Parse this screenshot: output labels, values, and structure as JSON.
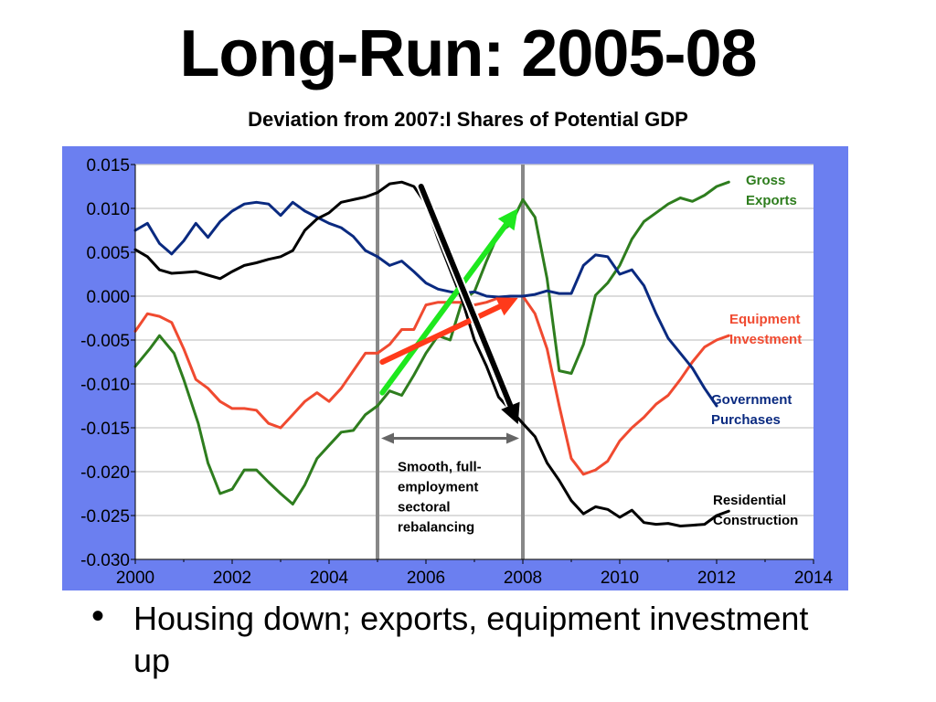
{
  "page": {
    "title": "Long-Run: 2005-08",
    "subtitle": "Deviation from 2007:I Shares of Potential GDP",
    "bullet_text": "Housing down; exports, equipment investment up"
  },
  "colors": {
    "panel_bg": "#6b7ff0",
    "plot_bg": "#ffffff",
    "grid": "#c8c8c8",
    "gross_exports": "#2e7d1e",
    "equipment": "#f04a30",
    "government": "#0a2a80",
    "residential": "#000000",
    "green_arrow": "#1ee81e",
    "red_arrow": "#ff3a1a",
    "bracket": "#666666",
    "vline": "#888888"
  },
  "chart_data": {
    "type": "line",
    "title": "",
    "xlabel": "",
    "ylabel": "",
    "xlim": [
      2000,
      2014
    ],
    "ylim": [
      -0.03,
      0.015
    ],
    "x_ticks": [
      "2000",
      "2002",
      "2004",
      "2006",
      "2008",
      "2010",
      "2012",
      "2014"
    ],
    "y_ticks": [
      "0.015",
      "0.010",
      "0.005",
      "0.000",
      "-0.005",
      "-0.010",
      "-0.015",
      "-0.020",
      "-0.025",
      "-0.030"
    ],
    "grid": true,
    "vertical_lines": [
      2005,
      2008
    ],
    "bracket_annotation": {
      "from": 2005,
      "to": 2008,
      "y": -0.0162,
      "lines": [
        "Smooth, full-",
        "employment",
        "sectoral",
        "rebalancing"
      ]
    },
    "arrows": [
      {
        "color_key": "green_arrow",
        "from": [
          2005.1,
          -0.011
        ],
        "to": [
          2007.9,
          0.01
        ]
      },
      {
        "color_key": "red_arrow",
        "from": [
          2005.1,
          -0.0075
        ],
        "to": [
          2007.9,
          -0.0002
        ]
      },
      {
        "color_key": "residential",
        "from": [
          2005.9,
          0.0125
        ],
        "to": [
          2007.9,
          -0.0146
        ]
      }
    ],
    "series": [
      {
        "name": "Gross Exports",
        "label_lines": [
          "Gross",
          "Exports"
        ],
        "color_key": "gross_exports",
        "x": [
          2000,
          2000.3,
          2000.5,
          2000.8,
          2001,
          2001.3,
          2001.5,
          2001.75,
          2002,
          2002.25,
          2002.5,
          2002.75,
          2003,
          2003.25,
          2003.5,
          2003.75,
          2004,
          2004.25,
          2004.5,
          2004.75,
          2005,
          2005.25,
          2005.5,
          2005.75,
          2006,
          2006.25,
          2006.5,
          2006.75,
          2007,
          2007.25,
          2007.5,
          2007.75,
          2008,
          2008.25,
          2008.5,
          2008.75,
          2009,
          2009.25,
          2009.5,
          2009.75,
          2010,
          2010.25,
          2010.5,
          2010.75,
          2011,
          2011.25,
          2011.5,
          2011.75,
          2012,
          2012.25
        ],
        "values": [
          -0.008,
          -0.006,
          -0.0045,
          -0.0065,
          -0.0095,
          -0.0145,
          -0.019,
          -0.0225,
          -0.022,
          -0.0198,
          -0.0198,
          -0.0212,
          -0.0225,
          -0.0237,
          -0.0215,
          -0.0185,
          -0.017,
          -0.0155,
          -0.0153,
          -0.0135,
          -0.0125,
          -0.0108,
          -0.0113,
          -0.009,
          -0.0065,
          -0.0045,
          -0.005,
          -0.0005,
          0.0005,
          0.004,
          0.0072,
          0.0082,
          0.011,
          0.009,
          0.002,
          -0.0085,
          -0.0088,
          -0.0055,
          0.0001,
          0.0015,
          0.0035,
          0.0065,
          0.0085,
          0.0095,
          0.0105,
          0.0112,
          0.0108,
          0.0115,
          0.0125,
          0.013
        ]
      },
      {
        "name": "Equipment Investment",
        "label_lines": [
          "Equipment",
          "Investment"
        ],
        "color_key": "equipment",
        "x": [
          2000,
          2000.25,
          2000.5,
          2000.75,
          2001,
          2001.25,
          2001.5,
          2001.75,
          2002,
          2002.25,
          2002.5,
          2002.75,
          2003,
          2003.25,
          2003.5,
          2003.75,
          2004,
          2004.25,
          2004.5,
          2004.75,
          2005,
          2005.25,
          2005.5,
          2005.75,
          2006,
          2006.25,
          2006.5,
          2006.75,
          2007,
          2007.25,
          2007.5,
          2007.75,
          2008,
          2008.25,
          2008.5,
          2008.75,
          2009,
          2009.25,
          2009.5,
          2009.75,
          2010,
          2010.25,
          2010.5,
          2010.75,
          2011,
          2011.25,
          2011.5,
          2011.75,
          2012,
          2012.25
        ],
        "values": [
          -0.004,
          -0.002,
          -0.0023,
          -0.003,
          -0.006,
          -0.0095,
          -0.0105,
          -0.012,
          -0.0128,
          -0.0128,
          -0.013,
          -0.0145,
          -0.015,
          -0.0135,
          -0.012,
          -0.011,
          -0.012,
          -0.0105,
          -0.0085,
          -0.0065,
          -0.0065,
          -0.0055,
          -0.0038,
          -0.0038,
          -0.001,
          -0.0007,
          -0.0007,
          -0.0007,
          -0.001,
          -0.0007,
          -0.0002,
          0.0,
          0.0,
          -0.002,
          -0.006,
          -0.0125,
          -0.0185,
          -0.0203,
          -0.0198,
          -0.0188,
          -0.0165,
          -0.015,
          -0.0138,
          -0.0123,
          -0.0113,
          -0.0095,
          -0.0075,
          -0.0058,
          -0.005,
          -0.0045
        ]
      },
      {
        "name": "Government Purchases",
        "label_lines": [
          "Government",
          "Purchases"
        ],
        "color_key": "government",
        "x": [
          2000,
          2000.25,
          2000.5,
          2000.75,
          2001,
          2001.25,
          2001.5,
          2001.75,
          2002,
          2002.25,
          2002.5,
          2002.75,
          2003,
          2003.25,
          2003.5,
          2003.75,
          2004,
          2004.25,
          2004.5,
          2004.75,
          2005,
          2005.25,
          2005.5,
          2005.75,
          2006,
          2006.25,
          2006.5,
          2006.75,
          2007,
          2007.25,
          2007.5,
          2007.75,
          2008,
          2008.25,
          2008.5,
          2008.75,
          2009,
          2009.25,
          2009.5,
          2009.75,
          2010,
          2010.25,
          2010.5,
          2010.75,
          2011,
          2011.25,
          2011.5,
          2011.75,
          2012
        ],
        "values": [
          0.0075,
          0.0083,
          0.006,
          0.0048,
          0.0063,
          0.0083,
          0.0067,
          0.0085,
          0.0097,
          0.0105,
          0.0107,
          0.0105,
          0.0092,
          0.0107,
          0.0097,
          0.009,
          0.0083,
          0.0078,
          0.0068,
          0.0052,
          0.0045,
          0.0035,
          0.004,
          0.0028,
          0.0015,
          0.0008,
          0.0005,
          0.0003,
          0.0005,
          0.0,
          -0.0001,
          0.0,
          0.0,
          0.0002,
          0.0006,
          0.0003,
          0.0003,
          0.0035,
          0.0047,
          0.0045,
          0.0025,
          0.003,
          0.0012,
          -0.002,
          -0.0048,
          -0.0065,
          -0.0082,
          -0.0105,
          -0.0125
        ]
      },
      {
        "name": "Residential Construction",
        "label_lines": [
          "Residential",
          "Construction"
        ],
        "color_key": "residential",
        "x": [
          2000,
          2000.25,
          2000.5,
          2000.75,
          2001,
          2001.25,
          2001.5,
          2001.75,
          2002,
          2002.25,
          2002.5,
          2002.75,
          2003,
          2003.25,
          2003.5,
          2003.75,
          2004,
          2004.25,
          2004.5,
          2004.75,
          2005,
          2005.25,
          2005.5,
          2005.75,
          2006,
          2006.25,
          2006.5,
          2006.75,
          2007,
          2007.25,
          2007.5,
          2007.75,
          2008,
          2008.25,
          2008.5,
          2008.75,
          2009,
          2009.25,
          2009.5,
          2009.75,
          2010,
          2010.25,
          2010.5,
          2010.75,
          2011,
          2011.25,
          2011.5,
          2011.75,
          2012,
          2012.25
        ],
        "values": [
          0.0053,
          0.0045,
          0.003,
          0.0026,
          0.0027,
          0.0028,
          0.0024,
          0.002,
          0.0028,
          0.0035,
          0.0038,
          0.0042,
          0.0045,
          0.0052,
          0.0075,
          0.0088,
          0.0095,
          0.0107,
          0.011,
          0.0113,
          0.0118,
          0.0128,
          0.013,
          0.0125,
          0.0105,
          0.0065,
          0.003,
          -0.0005,
          -0.005,
          -0.008,
          -0.0115,
          -0.013,
          -0.0145,
          -0.016,
          -0.019,
          -0.021,
          -0.0233,
          -0.0248,
          -0.024,
          -0.0243,
          -0.0252,
          -0.0244,
          -0.0258,
          -0.026,
          -0.0259,
          -0.0262,
          -0.0261,
          -0.026,
          -0.025,
          -0.0245
        ]
      }
    ]
  }
}
